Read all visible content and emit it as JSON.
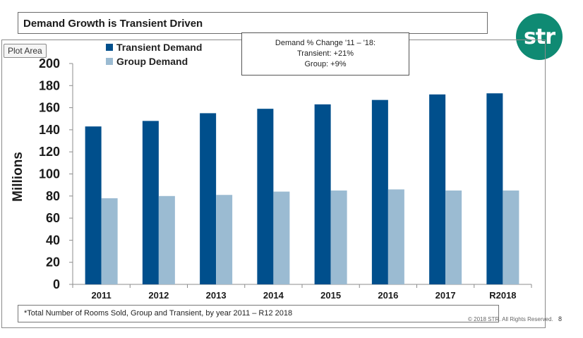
{
  "slide": {
    "title": "Demand Growth is Transient Driven",
    "logo_text": "str",
    "plot_area_tag": "Plot Area",
    "annotation": {
      "line1": "Demand % Change '11 – '18:",
      "line2": "Transient: +21%",
      "line3": "Group: +9%"
    },
    "footnote": "*Total Number of Rooms Sold, Group and Transient, by year 2011 – R12 2018",
    "copyright": "© 2018 STR. All Rights Reserved.",
    "page_number": "8"
  },
  "chart_data": {
    "type": "bar",
    "title": "",
    "xlabel": "",
    "ylabel": "Millions",
    "ylim": [
      0,
      200
    ],
    "yticks": [
      0,
      20,
      40,
      60,
      80,
      100,
      120,
      140,
      160,
      180,
      200
    ],
    "grid": false,
    "legend_position": "top-left",
    "categories": [
      "2011",
      "2012",
      "2013",
      "2014",
      "2015",
      "2016",
      "2017",
      "R2018"
    ],
    "series": [
      {
        "name": "Transient Demand",
        "color": "#004f8c",
        "values": [
          143,
          148,
          155,
          159,
          163,
          167,
          172,
          173
        ]
      },
      {
        "name": "Group Demand",
        "color": "#9bbbd2",
        "values": [
          78,
          80,
          81,
          84,
          85,
          86,
          85,
          85
        ]
      }
    ]
  }
}
